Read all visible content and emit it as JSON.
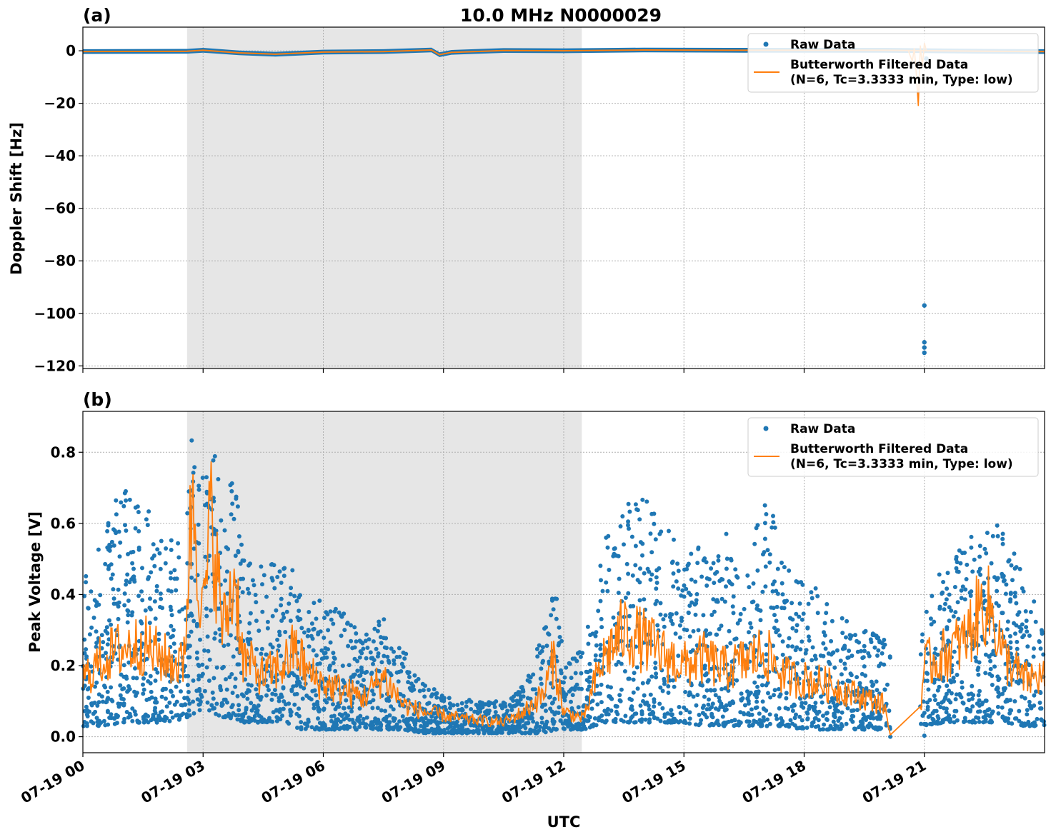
{
  "chart_data": {
    "title": "10.0 MHz N0000029",
    "xlabel": "UTC",
    "x_ticks": [
      "07-19 00",
      "07-19 03",
      "07-19 06",
      "07-19 09",
      "07-19 12",
      "07-19 15",
      "07-19 18",
      "07-19 21"
    ],
    "x_tick_hours": [
      0,
      3,
      6,
      9,
      12,
      15,
      18,
      21
    ],
    "x_range_hours": [
      0,
      24
    ],
    "shaded_interval_hours": [
      2.6,
      12.45
    ],
    "colors": {
      "raw": "#1f77b4",
      "filtered": "#ff7f0e",
      "shade": "#e6e6e6"
    },
    "legend": {
      "placement": "upper right",
      "raw_label": "Raw Data",
      "filtered_label_line1": "Butterworth Filtered Data",
      "filtered_label_line2": "(N=6, Tc=3.3333 min, Type: low)"
    },
    "panels": [
      {
        "label": "(a)",
        "type": "scatter+line",
        "ylabel": "Doppler Shift [Hz]",
        "ylim": [
          -121,
          9
        ],
        "y_ticks": [
          0,
          -20,
          -40,
          -60,
          -80,
          -100,
          -120
        ],
        "y_tick_labels": [
          "0",
          "−20",
          "−40",
          "−60",
          "−80",
          "−100",
          "−120"
        ],
        "grid": true,
        "raw_outliers": [
          {
            "x": 21.0,
            "y": -97
          },
          {
            "x": 21.0,
            "y": -111
          },
          {
            "x": 21.0,
            "y": -113
          },
          {
            "x": 21.0,
            "y": -115
          },
          {
            "x": 20.9,
            "y": -5
          },
          {
            "x": 21.05,
            "y": -3
          }
        ],
        "raw_band": [
          [
            0,
            -0.3
          ],
          [
            2.6,
            -0.2
          ],
          [
            3.0,
            0.2
          ],
          [
            3.9,
            -0.8
          ],
          [
            4.8,
            -1.3
          ],
          [
            6.0,
            -0.5
          ],
          [
            7.5,
            -0.3
          ],
          [
            8.7,
            0.3
          ],
          [
            8.9,
            -1.5
          ],
          [
            9.2,
            -0.6
          ],
          [
            10.5,
            0.1
          ],
          [
            12.0,
            0.0
          ],
          [
            14.0,
            0.3
          ],
          [
            16.5,
            0.2
          ],
          [
            18.0,
            0.2
          ],
          [
            20.0,
            0.2
          ],
          [
            22.5,
            -0.2
          ],
          [
            24,
            -0.3
          ]
        ],
        "filtered_spike": [
          [
            20.6,
            0
          ],
          [
            20.7,
            -4
          ],
          [
            20.75,
            1
          ],
          [
            20.8,
            -9
          ],
          [
            20.85,
            -21
          ],
          [
            20.9,
            2
          ],
          [
            20.95,
            -6
          ],
          [
            21.0,
            3
          ],
          [
            21.05,
            0
          ]
        ]
      },
      {
        "label": "(b)",
        "type": "scatter+line",
        "ylabel": "Peak Voltage [V]",
        "ylim": [
          -0.045,
          0.915
        ],
        "y_ticks": [
          0.0,
          0.2,
          0.4,
          0.6,
          0.8
        ],
        "y_tick_labels": [
          "0.0",
          "0.2",
          "0.4",
          "0.6",
          "0.8"
        ],
        "grid": true,
        "gap_hours": [
          20.15,
          20.9
        ],
        "envelope": [
          [
            0.0,
            0.03,
            0.45
          ],
          [
            0.5,
            0.03,
            0.6
          ],
          [
            1.0,
            0.04,
            0.7
          ],
          [
            1.5,
            0.04,
            0.65
          ],
          [
            2.0,
            0.04,
            0.6
          ],
          [
            2.5,
            0.05,
            0.55
          ],
          [
            2.7,
            0.06,
            0.87
          ],
          [
            3.0,
            0.08,
            0.75
          ],
          [
            3.2,
            0.07,
            0.86
          ],
          [
            3.5,
            0.05,
            0.65
          ],
          [
            3.8,
            0.05,
            0.76
          ],
          [
            4.0,
            0.04,
            0.5
          ],
          [
            4.5,
            0.04,
            0.48
          ],
          [
            5.0,
            0.03,
            0.5
          ],
          [
            5.5,
            0.02,
            0.45
          ],
          [
            6.0,
            0.02,
            0.38
          ],
          [
            6.5,
            0.02,
            0.35
          ],
          [
            7.0,
            0.02,
            0.3
          ],
          [
            7.5,
            0.02,
            0.37
          ],
          [
            8.0,
            0.02,
            0.25
          ],
          [
            8.5,
            0.01,
            0.15
          ],
          [
            9.0,
            0.01,
            0.12
          ],
          [
            9.5,
            0.01,
            0.11
          ],
          [
            10.0,
            0.01,
            0.1
          ],
          [
            10.5,
            0.01,
            0.1
          ],
          [
            11.0,
            0.01,
            0.15
          ],
          [
            11.5,
            0.01,
            0.3
          ],
          [
            11.8,
            0.02,
            0.47
          ],
          [
            12.0,
            0.02,
            0.2
          ],
          [
            12.5,
            0.02,
            0.25
          ],
          [
            13.0,
            0.04,
            0.55
          ],
          [
            13.5,
            0.04,
            0.65
          ],
          [
            14.0,
            0.04,
            0.7
          ],
          [
            14.5,
            0.04,
            0.62
          ],
          [
            15.0,
            0.04,
            0.5
          ],
          [
            15.5,
            0.03,
            0.55
          ],
          [
            16.0,
            0.03,
            0.58
          ],
          [
            16.5,
            0.03,
            0.5
          ],
          [
            17.0,
            0.03,
            0.72
          ],
          [
            17.5,
            0.03,
            0.52
          ],
          [
            18.0,
            0.02,
            0.45
          ],
          [
            18.5,
            0.02,
            0.4
          ],
          [
            19.0,
            0.02,
            0.33
          ],
          [
            19.5,
            0.02,
            0.3
          ],
          [
            20.0,
            0.02,
            0.28
          ],
          [
            20.15,
            0.02,
            0.24
          ],
          [
            20.9,
            0.03,
            0.3
          ],
          [
            21.5,
            0.04,
            0.5
          ],
          [
            22.0,
            0.04,
            0.55
          ],
          [
            22.5,
            0.04,
            0.62
          ],
          [
            23.0,
            0.04,
            0.6
          ],
          [
            23.5,
            0.03,
            0.45
          ],
          [
            24.0,
            0.03,
            0.35
          ]
        ],
        "filtered_anchors": [
          [
            0.0,
            0.16
          ],
          [
            0.5,
            0.22
          ],
          [
            1.0,
            0.25
          ],
          [
            1.5,
            0.26
          ],
          [
            2.0,
            0.22
          ],
          [
            2.5,
            0.2
          ],
          [
            2.75,
            0.7
          ],
          [
            3.0,
            0.33
          ],
          [
            3.2,
            0.62
          ],
          [
            3.5,
            0.3
          ],
          [
            3.8,
            0.45
          ],
          [
            4.0,
            0.22
          ],
          [
            4.5,
            0.17
          ],
          [
            5.0,
            0.2
          ],
          [
            5.3,
            0.25
          ],
          [
            5.6,
            0.18
          ],
          [
            6.0,
            0.15
          ],
          [
            6.5,
            0.13
          ],
          [
            7.0,
            0.11
          ],
          [
            7.5,
            0.17
          ],
          [
            8.0,
            0.09
          ],
          [
            8.5,
            0.07
          ],
          [
            9.0,
            0.06
          ],
          [
            9.5,
            0.05
          ],
          [
            10.0,
            0.045
          ],
          [
            10.5,
            0.04
          ],
          [
            11.0,
            0.07
          ],
          [
            11.5,
            0.12
          ],
          [
            11.75,
            0.22
          ],
          [
            12.0,
            0.07
          ],
          [
            12.5,
            0.05
          ],
          [
            12.8,
            0.16
          ],
          [
            13.0,
            0.22
          ],
          [
            13.5,
            0.3
          ],
          [
            14.0,
            0.27
          ],
          [
            14.5,
            0.23
          ],
          [
            15.0,
            0.2
          ],
          [
            15.5,
            0.22
          ],
          [
            16.0,
            0.19
          ],
          [
            16.5,
            0.21
          ],
          [
            17.0,
            0.24
          ],
          [
            17.5,
            0.17
          ],
          [
            18.0,
            0.16
          ],
          [
            18.5,
            0.15
          ],
          [
            19.0,
            0.13
          ],
          [
            19.5,
            0.11
          ],
          [
            20.0,
            0.09
          ],
          [
            20.15,
            0.005
          ],
          [
            20.9,
            0.085
          ],
          [
            21.0,
            0.2
          ],
          [
            21.5,
            0.23
          ],
          [
            22.0,
            0.27
          ],
          [
            22.5,
            0.38
          ],
          [
            22.75,
            0.33
          ],
          [
            23.0,
            0.22
          ],
          [
            23.5,
            0.16
          ],
          [
            24.0,
            0.17
          ]
        ]
      }
    ]
  }
}
